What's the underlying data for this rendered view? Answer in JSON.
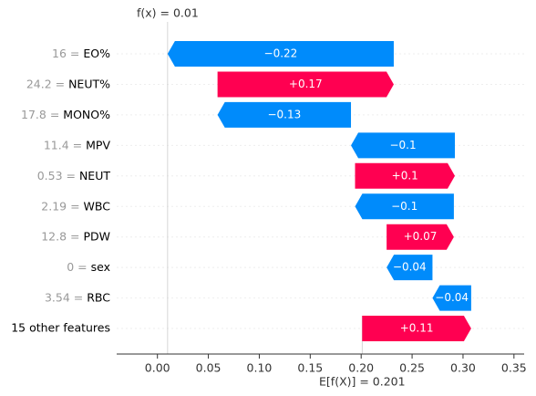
{
  "chart_data": {
    "type": "waterfall",
    "categories": [
      "16 = EO%",
      "24.2 = NEUT%",
      "17.8 = MONO%",
      "11.4 = MPV",
      "0.53 = NEUT",
      "2.19 = WBC",
      "12.8 = PDW",
      "0 = sex",
      "3.54 = RBC",
      "15 other features"
    ],
    "values": [
      -0.222,
      0.173,
      -0.131,
      -0.102,
      0.098,
      -0.097,
      0.066,
      -0.045,
      -0.038,
      0.107
    ],
    "value_labels": [
      "−0.22",
      "+0.17",
      "−0.13",
      "−0.1",
      "+0.1",
      "−0.1",
      "+0.07",
      "−0.04",
      "−0.04",
      "+0.11"
    ],
    "base_value": {
      "value": 0.201,
      "label": "E[f(X)] = 0.201"
    },
    "output_value": {
      "value": 0.01,
      "label": "f(x) = 0.01"
    },
    "positive_color": "#ff0051",
    "negative_color": "#008bfb",
    "xlim": [
      -0.04,
      0.36
    ],
    "xticks": [
      {
        "value": 0,
        "label": "0.00"
      },
      0.05,
      {
        "value": 0.1,
        "label": "0.10"
      },
      0.15,
      {
        "value": 0.2,
        "label": "0.20"
      },
      0.25,
      {
        "value": 0.3,
        "label": "0.30"
      },
      0.35
    ]
  }
}
